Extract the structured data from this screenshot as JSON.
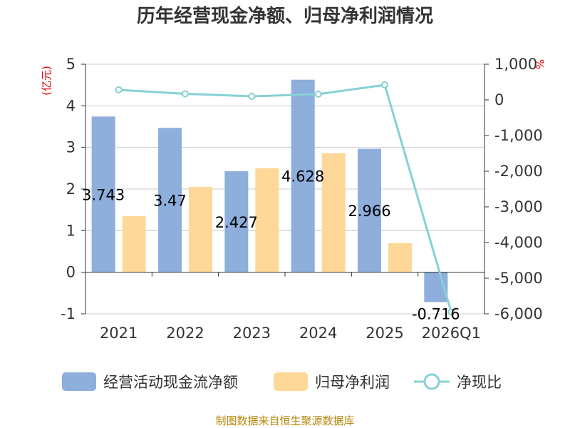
{
  "chart_data": {
    "type": "bar",
    "title": "历年经营现金净额、归母净利润情况",
    "left_unit": "(亿元)",
    "right_unit": "%",
    "categories": [
      "2021",
      "2022",
      "2023",
      "2024",
      "2025",
      "2026Q1"
    ],
    "left_axis": {
      "min": -1,
      "max": 5,
      "ticks": [
        "-1",
        "0",
        "1",
        "2",
        "3",
        "4",
        "5"
      ]
    },
    "right_axis": {
      "min": -6000,
      "max": 1000,
      "ticks": [
        "-6,000",
        "-5,000",
        "-4,000",
        "-3,000",
        "-2,000",
        "-1,000",
        "0",
        "1,000"
      ]
    },
    "series": [
      {
        "name": "经营活动现金流净额",
        "kind": "bar",
        "axis": "left",
        "color": "#8eaedb",
        "values": [
          3.743,
          3.47,
          2.427,
          4.628,
          2.966,
          -0.716
        ],
        "labels": [
          "3.743",
          "3.47",
          "2.427",
          "4.628",
          "2.966",
          "-0.716"
        ]
      },
      {
        "name": "归母净利润",
        "kind": "bar",
        "axis": "left",
        "color": "#fdd898",
        "values": [
          1.35,
          2.05,
          2.5,
          2.86,
          0.7,
          null
        ]
      },
      {
        "name": "净现比",
        "kind": "line",
        "axis": "right",
        "color": "#86d1d3",
        "values": [
          280,
          170,
          100,
          160,
          420,
          -5950
        ]
      }
    ],
    "grid": true,
    "legend": "bottom"
  },
  "source": "制图数据来自恒生聚源数据库"
}
